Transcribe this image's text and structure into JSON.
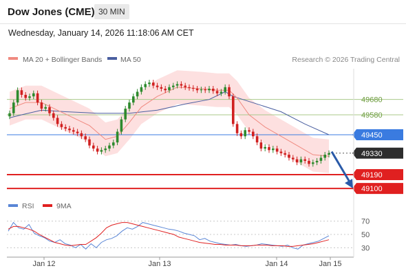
{
  "header": {
    "title": "Dow Jones (CME)",
    "timeframe": "30 MIN",
    "datetime": "Wednesday, January 14, 2026 11:18:06 AM CET"
  },
  "colors": {
    "price_up": "#2d8a2d",
    "price_down": "#d02020",
    "ma20": "#f08a80",
    "bollinger_fill": "#fde0e0",
    "ma50": "#4a5fa0",
    "resistance": "#a8c98a",
    "current_price_line": "#3a7be0",
    "support": "#e02020",
    "last_price_badge": "#2d2d2d",
    "rsi": "#5a86d6",
    "rsi_ma": "#e02020",
    "forecast_arrow": "#2a5aa8"
  },
  "chart_data": {
    "type": "candlestick",
    "legend": [
      {
        "name": "MA 20 + Bollinger Bands",
        "color": "#f08a80"
      },
      {
        "name": "MA 50",
        "color": "#4a5fa0"
      }
    ],
    "credit": "Research © 2026 Trading Central",
    "x_ticks": [
      "Jan 12",
      "Jan 13",
      "Jan 14",
      "Jan 15"
    ],
    "y_range": [
      49020,
      49880
    ],
    "levels": [
      {
        "label": "49680",
        "value": 49680,
        "kind": "resistance"
      },
      {
        "label": "49580",
        "value": 49580,
        "kind": "resistance"
      },
      {
        "label": "49450",
        "value": 49450,
        "kind": "pivot"
      },
      {
        "label": "49330",
        "value": 49330,
        "kind": "last"
      },
      {
        "label": "49190",
        "value": 49190,
        "kind": "support"
      },
      {
        "label": "49100",
        "value": 49100,
        "kind": "support"
      }
    ],
    "candles_close": [
      49590,
      49660,
      49740,
      49710,
      49690,
      49700,
      49720,
      49660,
      49620,
      49630,
      49590,
      49560,
      49520,
      49500,
      49490,
      49480,
      49470,
      49460,
      49440,
      49420,
      49380,
      49360,
      49340,
      49350,
      49360,
      49380,
      49400,
      49470,
      49550,
      49620,
      49660,
      49700,
      49730,
      49760,
      49780,
      49790,
      49770,
      49760,
      49750,
      49740,
      49760,
      49770,
      49780,
      49770,
      49760,
      49755,
      49750,
      49740,
      49745,
      49740,
      49750,
      49735,
      49720,
      49730,
      49760,
      49700,
      49520,
      49460,
      49440,
      49480,
      49470,
      49440,
      49400,
      49360,
      49370,
      49350,
      49360,
      49340,
      49330,
      49320,
      49300,
      49290,
      49270,
      49290,
      49280,
      49260,
      49270,
      49280,
      49300,
      49320,
      49330
    ],
    "ma50_points": [
      [
        0,
        49560
      ],
      [
        3,
        49580
      ],
      [
        8,
        49610
      ],
      [
        14,
        49600
      ],
      [
        22,
        49590
      ],
      [
        30,
        49590
      ],
      [
        37,
        49610
      ],
      [
        44,
        49650
      ],
      [
        50,
        49680
      ],
      [
        54,
        49730
      ],
      [
        56,
        49700
      ],
      [
        62,
        49650
      ],
      [
        68,
        49600
      ],
      [
        74,
        49520
      ],
      [
        80,
        49450
      ]
    ],
    "ma20_points": [
      [
        0,
        49620
      ],
      [
        4,
        49660
      ],
      [
        8,
        49660
      ],
      [
        12,
        49610
      ],
      [
        16,
        49560
      ],
      [
        20,
        49510
      ],
      [
        24,
        49420
      ],
      [
        27,
        49440
      ],
      [
        30,
        49530
      ],
      [
        33,
        49630
      ],
      [
        37,
        49700
      ],
      [
        42,
        49760
      ],
      [
        48,
        49750
      ],
      [
        52,
        49740
      ],
      [
        55,
        49740
      ],
      [
        57,
        49690
      ],
      [
        60,
        49580
      ],
      [
        64,
        49500
      ],
      [
        68,
        49440
      ],
      [
        72,
        49380
      ],
      [
        76,
        49320
      ],
      [
        80,
        49310
      ]
    ],
    "forecast_arrow": {
      "from": 49340,
      "to": 49100
    },
    "rsi": {
      "legend": [
        "RSI",
        "9MA"
      ],
      "y_ticks": [
        "70",
        "50",
        "30"
      ],
      "y_range": [
        20,
        80
      ],
      "rsi_values": [
        55,
        68,
        60,
        58,
        65,
        52,
        48,
        45,
        40,
        38,
        42,
        36,
        34,
        30,
        35,
        28,
        36,
        30,
        38,
        42,
        44,
        48,
        55,
        60,
        58,
        62,
        68,
        66,
        64,
        62,
        60,
        58,
        57,
        55,
        52,
        50,
        48,
        42,
        44,
        40,
        38,
        36,
        35,
        34,
        35,
        33,
        32,
        33,
        34,
        36,
        35,
        34,
        33,
        32,
        34,
        30,
        28,
        34,
        36,
        38,
        40,
        44,
        48
      ],
      "ma_values": [
        58,
        62,
        62,
        60,
        58,
        55,
        50,
        46,
        42,
        38,
        36,
        34,
        33,
        34,
        35,
        35,
        40,
        45,
        52,
        60,
        64,
        66,
        68,
        68,
        66,
        64,
        62,
        60,
        58,
        56,
        54,
        52,
        50,
        46,
        44,
        42,
        40,
        38,
        37,
        36,
        35,
        35,
        34,
        34,
        34,
        33,
        33,
        33,
        34,
        34,
        34,
        33,
        33,
        33,
        32,
        32,
        33,
        34,
        35,
        36,
        38,
        40,
        42
      ]
    }
  }
}
